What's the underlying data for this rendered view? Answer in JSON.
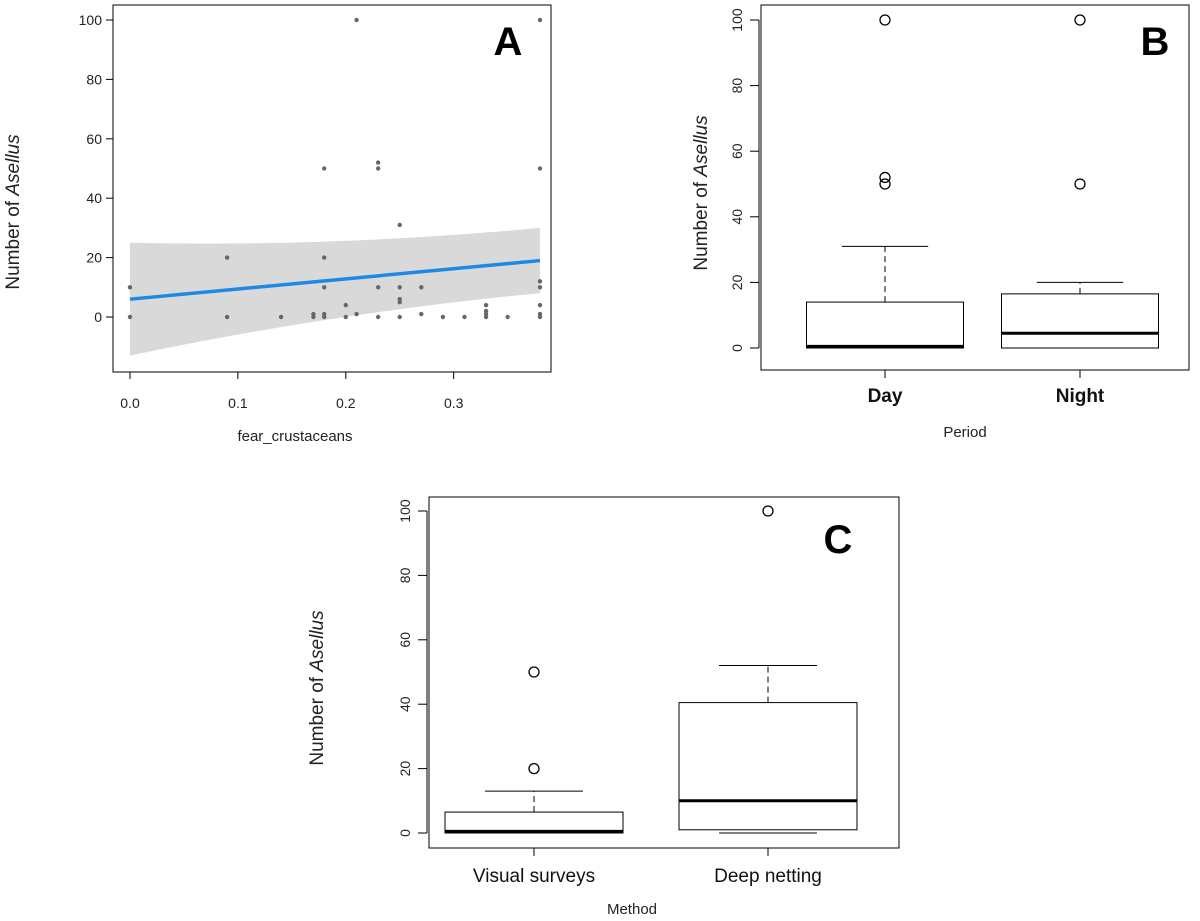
{
  "colors": {
    "regression_line": "#1e88e5",
    "confidence_band": "#d9d9d9",
    "points": "#666666",
    "box": "#000000"
  },
  "chart_data": [
    {
      "id": "A",
      "type": "scatter",
      "panel_label": "A",
      "xlabel": "fear_crustaceans",
      "ylabel_prefix": "Number of ",
      "ylabel_italic": "Asellus",
      "xlim": [
        0,
        0.38
      ],
      "ylim": [
        -10,
        100
      ],
      "x_ticks": [
        "0.0",
        "0.1",
        "0.2",
        "0.3"
      ],
      "y_ticks": [
        "0",
        "20",
        "40",
        "60",
        "80",
        "100"
      ],
      "points": [
        {
          "x": 0.0,
          "y": 10
        },
        {
          "x": 0.0,
          "y": 0
        },
        {
          "x": 0.09,
          "y": 20
        },
        {
          "x": 0.09,
          "y": 0
        },
        {
          "x": 0.14,
          "y": 0
        },
        {
          "x": 0.17,
          "y": 0
        },
        {
          "x": 0.17,
          "y": 1
        },
        {
          "x": 0.18,
          "y": 50
        },
        {
          "x": 0.18,
          "y": 20
        },
        {
          "x": 0.18,
          "y": 10
        },
        {
          "x": 0.18,
          "y": 1
        },
        {
          "x": 0.18,
          "y": 0
        },
        {
          "x": 0.2,
          "y": 4
        },
        {
          "x": 0.2,
          "y": 0
        },
        {
          "x": 0.21,
          "y": 100
        },
        {
          "x": 0.21,
          "y": 1
        },
        {
          "x": 0.23,
          "y": 52
        },
        {
          "x": 0.23,
          "y": 50
        },
        {
          "x": 0.23,
          "y": 10
        },
        {
          "x": 0.23,
          "y": 0
        },
        {
          "x": 0.25,
          "y": 31
        },
        {
          "x": 0.25,
          "y": 10
        },
        {
          "x": 0.25,
          "y": 6
        },
        {
          "x": 0.25,
          "y": 5
        },
        {
          "x": 0.25,
          "y": 0
        },
        {
          "x": 0.27,
          "y": 10
        },
        {
          "x": 0.27,
          "y": 1
        },
        {
          "x": 0.29,
          "y": 0
        },
        {
          "x": 0.31,
          "y": 0
        },
        {
          "x": 0.33,
          "y": 4
        },
        {
          "x": 0.33,
          "y": 2
        },
        {
          "x": 0.33,
          "y": 1
        },
        {
          "x": 0.33,
          "y": 0
        },
        {
          "x": 0.35,
          "y": 0
        },
        {
          "x": 0.38,
          "y": 100
        },
        {
          "x": 0.38,
          "y": 50
        },
        {
          "x": 0.38,
          "y": 12
        },
        {
          "x": 0.38,
          "y": 10
        },
        {
          "x": 0.38,
          "y": 4
        },
        {
          "x": 0.38,
          "y": 1
        },
        {
          "x": 0.38,
          "y": 0
        }
      ],
      "fit": {
        "x": [
          0.0,
          0.38
        ],
        "y": [
          6,
          19
        ]
      },
      "band": {
        "lower": [
          -13,
          8
        ],
        "upper": [
          25,
          30
        ]
      }
    },
    {
      "id": "B",
      "type": "box",
      "panel_label": "B",
      "xlabel": "Period",
      "ylabel_prefix": "Number of ",
      "ylabel_italic": "Asellus",
      "ylim": [
        -8,
        103
      ],
      "y_ticks": [
        "0",
        "20",
        "40",
        "60",
        "80",
        "100"
      ],
      "category_style": "bold",
      "categories": [
        "Day",
        "Night"
      ],
      "boxes": [
        {
          "q1": 0,
          "median": 0.5,
          "q3": 14,
          "whisker_low": 0,
          "whisker_high": 31,
          "outliers": [
            50,
            52,
            100
          ]
        },
        {
          "q1": 0,
          "median": 4.5,
          "q3": 16.5,
          "whisker_low": 0,
          "whisker_high": 20,
          "outliers": [
            50,
            100
          ]
        }
      ]
    },
    {
      "id": "C",
      "type": "box",
      "panel_label": "C",
      "xlabel": "Method",
      "ylabel_prefix": "Number of ",
      "ylabel_italic": "Asellus",
      "ylim": [
        -4,
        104
      ],
      "y_ticks": [
        "0",
        "20",
        "40",
        "60",
        "80",
        "100"
      ],
      "category_style": "plain",
      "categories": [
        "Visual surveys",
        "Deep netting"
      ],
      "boxes": [
        {
          "q1": 0,
          "median": 0.5,
          "q3": 6.5,
          "whisker_low": 0,
          "whisker_high": 13,
          "outliers": [
            20,
            50
          ]
        },
        {
          "q1": 1,
          "median": 10,
          "q3": 40.5,
          "whisker_low": 0,
          "whisker_high": 52,
          "outliers": [
            100
          ]
        }
      ]
    }
  ]
}
